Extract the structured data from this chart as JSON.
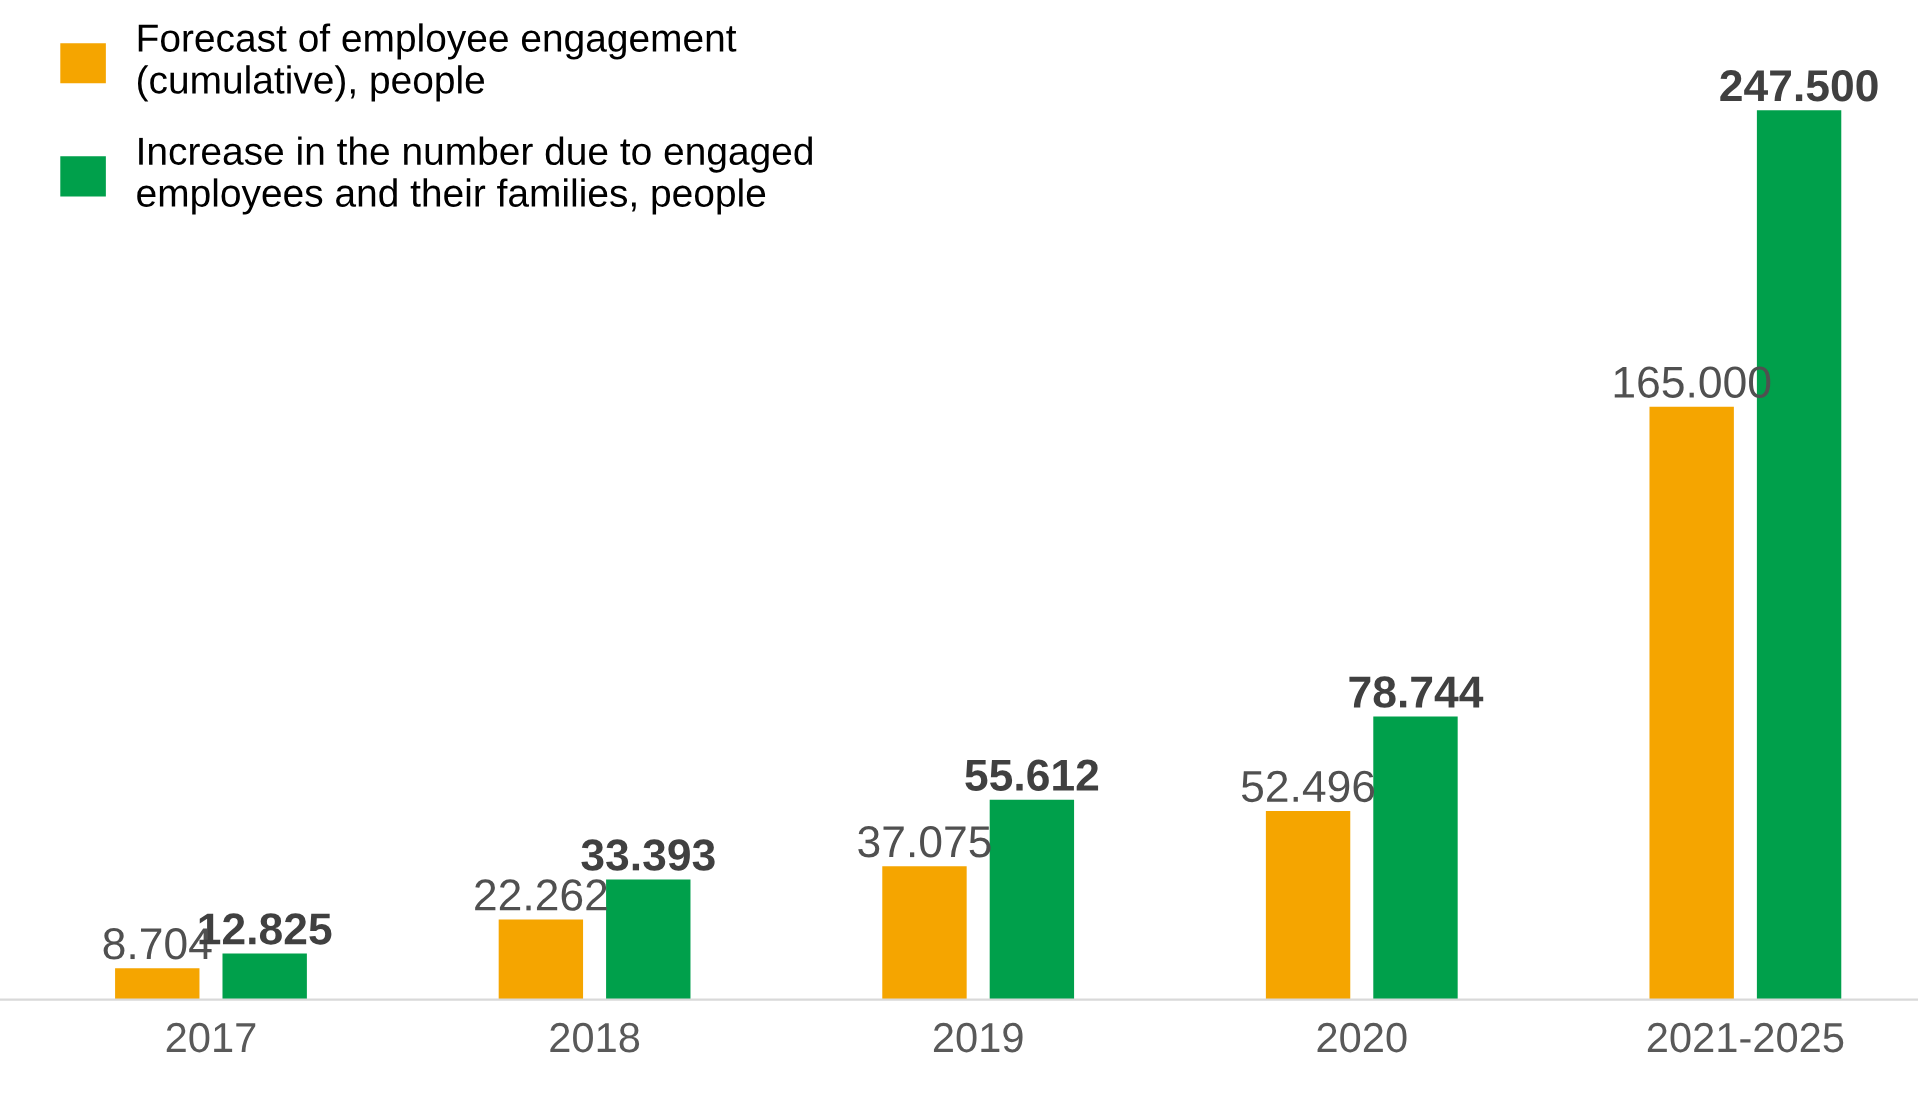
{
  "chart_data": {
    "type": "bar",
    "categories": [
      "2017",
      "2018",
      "2019",
      "2020",
      "2021-2025"
    ],
    "series": [
      {
        "name": "Forecast of employee engagement\n(cumulative), people",
        "color": "#f5a500",
        "values": [
          8704,
          22262,
          37075,
          52496,
          165000
        ],
        "value_labels": [
          "8.704",
          "22.262",
          "37.075",
          "52.496",
          "165.000"
        ]
      },
      {
        "name": "Increase in the number due to engaged\nemployees and their families, people",
        "color": "#00a04b",
        "values": [
          12825,
          33393,
          55612,
          78744,
          247500
        ],
        "value_labels": [
          "12.825",
          "33.393",
          "55.612",
          "78.744",
          "247.500"
        ]
      }
    ],
    "legend": "top left",
    "grid": false,
    "tick_labels": "x"
  }
}
